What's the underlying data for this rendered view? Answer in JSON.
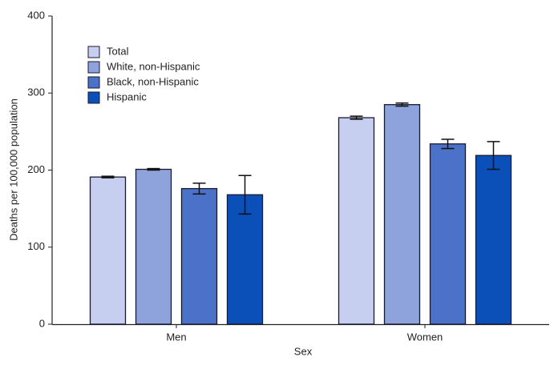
{
  "chart_data": {
    "type": "bar",
    "x_label": "Sex",
    "y_label": "Deaths per 100,000 population",
    "categories": [
      "Men",
      "Women"
    ],
    "series": [
      {
        "name": "Total",
        "color": "#c7cff0",
        "values": [
          191,
          268
        ],
        "errors": [
          1,
          2
        ]
      },
      {
        "name": "White, non-Hispanic",
        "color": "#8ea2dc",
        "values": [
          201,
          285
        ],
        "errors": [
          1,
          2
        ]
      },
      {
        "name": "Black, non-Hispanic",
        "color": "#4b72c8",
        "values": [
          176,
          234
        ],
        "errors": [
          7,
          6
        ]
      },
      {
        "name": "Hispanic",
        "color": "#0b50b8",
        "values": [
          168,
          219
        ],
        "errors": [
          25,
          18
        ]
      }
    ],
    "ylim": [
      0,
      400
    ],
    "yticks": [
      0,
      100,
      200,
      300,
      400
    ],
    "grid": false
  }
}
